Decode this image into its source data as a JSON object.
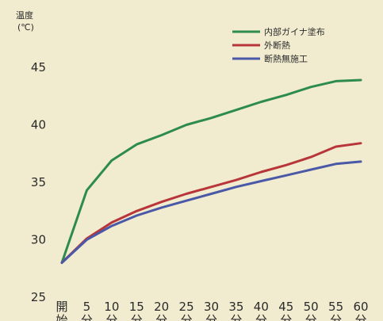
{
  "chart_data": {
    "type": "line",
    "ylabel_line1": "温度",
    "ylabel_line2": "(℃)",
    "ylim": [
      25,
      46
    ],
    "yticks": [
      25,
      30,
      35,
      40,
      45
    ],
    "grid": false,
    "legend_position": "top-right",
    "x": [
      "開始",
      "5分",
      "10分",
      "15分",
      "20分",
      "25分",
      "30分",
      "35分",
      "40分",
      "45分",
      "50分",
      "55分",
      "60分"
    ],
    "x_tick_top": [
      "開",
      "5",
      "10",
      "15",
      "20",
      "25",
      "30",
      "35",
      "40",
      "45",
      "50",
      "55",
      "60"
    ],
    "x_tick_bottom": [
      "始",
      "分",
      "分",
      "分",
      "分",
      "分",
      "分",
      "分",
      "分",
      "分",
      "分",
      "分",
      "分"
    ],
    "series": [
      {
        "name": "内部ガイナ塗布",
        "color": "#2e8b4e",
        "values": [
          28.0,
          34.3,
          36.9,
          38.3,
          39.1,
          40.0,
          40.6,
          41.3,
          42.0,
          42.6,
          43.3,
          43.8,
          43.9
        ]
      },
      {
        "name": "外断熱",
        "color": "#b8363a",
        "values": [
          28.0,
          30.1,
          31.5,
          32.5,
          33.3,
          34.0,
          34.6,
          35.2,
          35.9,
          36.5,
          37.2,
          38.1,
          38.4
        ]
      },
      {
        "name": "断熱無施工",
        "color": "#4a58a8",
        "values": [
          28.0,
          30.0,
          31.2,
          32.1,
          32.8,
          33.4,
          34.0,
          34.6,
          35.1,
          35.6,
          36.1,
          36.6,
          36.8
        ]
      }
    ]
  }
}
